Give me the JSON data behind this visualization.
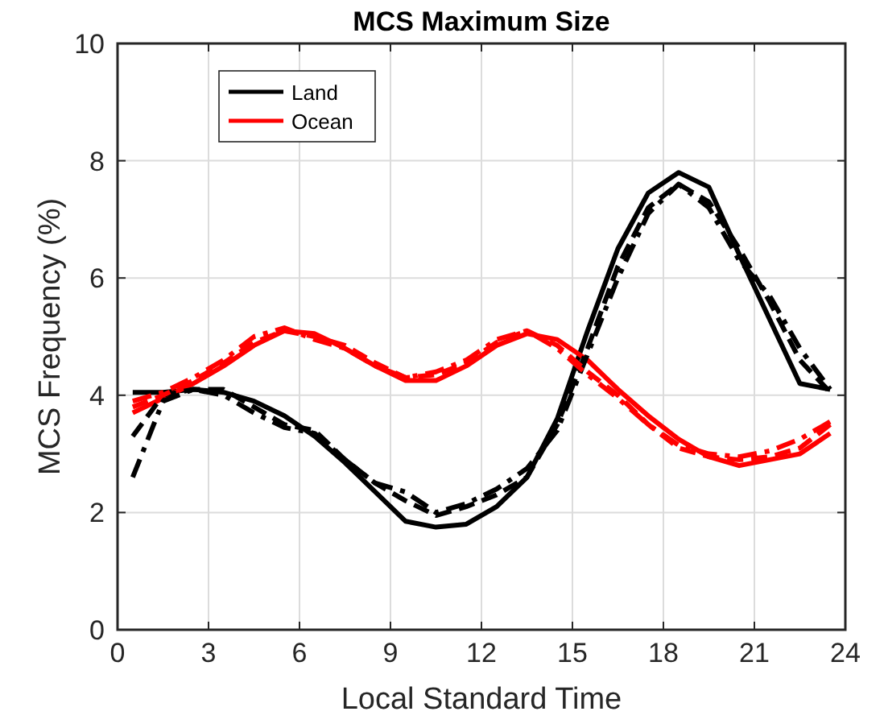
{
  "chart_data": {
    "type": "line",
    "title": "MCS Maximum Size",
    "xlabel": "Local Standard Time",
    "ylabel": "MCS Frequency (%)",
    "x": [
      0.5,
      1.5,
      2.5,
      3.5,
      4.5,
      5.5,
      6.5,
      7.5,
      8.5,
      9.5,
      10.5,
      11.5,
      12.5,
      13.5,
      14.5,
      15.5,
      16.5,
      17.5,
      18.5,
      19.5,
      20.5,
      21.5,
      22.5,
      23.5
    ],
    "xlim": [
      0,
      24
    ],
    "xticks": [
      0,
      3,
      6,
      9,
      12,
      15,
      18,
      21,
      24
    ],
    "ylim": [
      0,
      10
    ],
    "yticks": [
      0,
      2,
      4,
      6,
      8,
      10
    ],
    "grid": true,
    "legend": "top left",
    "series": [
      {
        "name": "Land",
        "color": "#000000",
        "line_style": "solid",
        "values": [
          4.05,
          4.05,
          4.1,
          4.05,
          3.9,
          3.65,
          3.3,
          2.85,
          2.35,
          1.85,
          1.75,
          1.8,
          2.1,
          2.6,
          3.6,
          5.1,
          6.5,
          7.45,
          7.8,
          7.55,
          6.4,
          5.3,
          4.2,
          4.1
        ]
      },
      {
        "name": "Ocean",
        "color": "#ff0000",
        "line_style": "solid",
        "values": [
          3.7,
          3.95,
          4.2,
          4.5,
          4.85,
          5.1,
          5.05,
          4.8,
          4.5,
          4.25,
          4.25,
          4.5,
          4.85,
          5.05,
          4.95,
          4.6,
          4.1,
          3.65,
          3.25,
          2.95,
          2.8,
          2.9,
          3.0,
          3.35
        ]
      },
      {
        "color": "#000000",
        "line_style": "dashed",
        "values": [
          3.3,
          4.0,
          4.1,
          4.1,
          3.8,
          3.5,
          3.4,
          2.9,
          2.5,
          2.2,
          1.95,
          2.1,
          2.3,
          2.6,
          3.5,
          4.8,
          6.2,
          7.2,
          7.6,
          7.3,
          6.5,
          5.6,
          4.6,
          4.05
        ]
      },
      {
        "color": "#000000",
        "line_style": "dashdot",
        "values": [
          2.6,
          3.9,
          4.1,
          4.0,
          3.7,
          3.45,
          3.35,
          2.9,
          2.5,
          2.35,
          2.0,
          2.15,
          2.4,
          2.75,
          3.4,
          4.7,
          6.0,
          7.1,
          7.6,
          7.2,
          6.3,
          5.7,
          4.8,
          4.1
        ]
      },
      {
        "color": "#ff0000",
        "line_style": "dashed",
        "values": [
          3.8,
          4.0,
          4.25,
          4.55,
          4.9,
          5.1,
          5.0,
          4.85,
          4.55,
          4.3,
          4.35,
          4.55,
          4.9,
          5.1,
          4.85,
          4.4,
          4.0,
          3.5,
          3.1,
          2.95,
          2.9,
          2.95,
          3.1,
          3.5
        ]
      },
      {
        "color": "#ff0000",
        "line_style": "dashdot",
        "values": [
          3.9,
          4.05,
          4.3,
          4.6,
          5.0,
          5.15,
          4.95,
          4.8,
          4.5,
          4.3,
          4.4,
          4.6,
          4.95,
          5.1,
          4.8,
          4.35,
          3.95,
          3.5,
          3.15,
          3.0,
          2.95,
          3.05,
          3.25,
          3.55
        ]
      }
    ]
  }
}
